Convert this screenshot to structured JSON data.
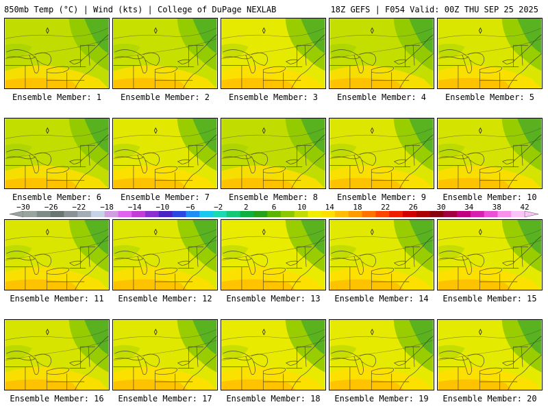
{
  "header": {
    "left": "850mb Temp (°C) | Wind (kts) | College of DuPage NEXLAB",
    "right": "18Z GEFS | F054 Valid: 00Z THU SEP 25 2025"
  },
  "panels": [
    {
      "label": "Ensemble Member: 1",
      "fill": "#c0dc00"
    },
    {
      "label": "Ensemble Member: 2",
      "fill": "#c8e000"
    },
    {
      "label": "Ensemble Member: 3",
      "fill": "#e6ea00"
    },
    {
      "label": "Ensemble Member: 4",
      "fill": "#c4de00"
    },
    {
      "label": "Ensemble Member: 5",
      "fill": "#dae600"
    },
    {
      "label": "Ensemble Member: 6",
      "fill": "#c2dd00"
    },
    {
      "label": "Ensemble Member: 7",
      "fill": "#e2e800"
    },
    {
      "label": "Ensemble Member: 8",
      "fill": "#c0dc00"
    },
    {
      "label": "Ensemble Member: 9",
      "fill": "#dce600"
    },
    {
      "label": "Ensemble Member: 10",
      "fill": "#d4e300"
    },
    {
      "label": "Ensemble Member: 11",
      "fill": "#dae600"
    },
    {
      "label": "Ensemble Member: 12",
      "fill": "#dee700"
    },
    {
      "label": "Ensemble Member: 13",
      "fill": "#eaec00"
    },
    {
      "label": "Ensemble Member: 14",
      "fill": "#e2e900"
    },
    {
      "label": "Ensemble Member: 15",
      "fill": "#e4e900"
    },
    {
      "label": "Ensemble Member: 16",
      "fill": "#d6e400"
    },
    {
      "label": "Ensemble Member: 17",
      "fill": "#e0e800"
    },
    {
      "label": "Ensemble Member: 18",
      "fill": "#e8eb00"
    },
    {
      "label": "Ensemble Member: 19",
      "fill": "#e6ea00"
    },
    {
      "label": "Ensemble Member: 20",
      "fill": "#e4ea00"
    }
  ],
  "colorbar": {
    "labels": [
      "−30",
      "−26",
      "−22",
      "−18",
      "−14",
      "−10",
      "−6",
      "−2",
      "2",
      "6",
      "10",
      "14",
      "18",
      "22",
      "26",
      "30",
      "34",
      "38",
      "42"
    ],
    "colors": [
      "#9aa49e",
      "#808a86",
      "#6a7470",
      "#8a9296",
      "#a4acb6",
      "#c6d2e6",
      "#d29ee2",
      "#e064ec",
      "#c03ed4",
      "#8a2ed0",
      "#4a22c4",
      "#2a48e0",
      "#1e8ef2",
      "#18c8ee",
      "#1ed8b0",
      "#14c878",
      "#10b040",
      "#28a018",
      "#5ab400",
      "#8cc800",
      "#c0dc00",
      "#f0ee00",
      "#ffde00",
      "#ffbc00",
      "#ff9a00",
      "#ff7200",
      "#ff4600",
      "#f01e00",
      "#d00000",
      "#aa0000",
      "#880010",
      "#a00040",
      "#c00080",
      "#d820b0",
      "#ec50d4",
      "#f890ec",
      "#fcc4f6"
    ]
  },
  "colors": {
    "cool_green": "#44a82a",
    "mid_green": "#8cc800",
    "warm_yellow": "#ffde00",
    "warm_orange": "#ffbc00"
  }
}
